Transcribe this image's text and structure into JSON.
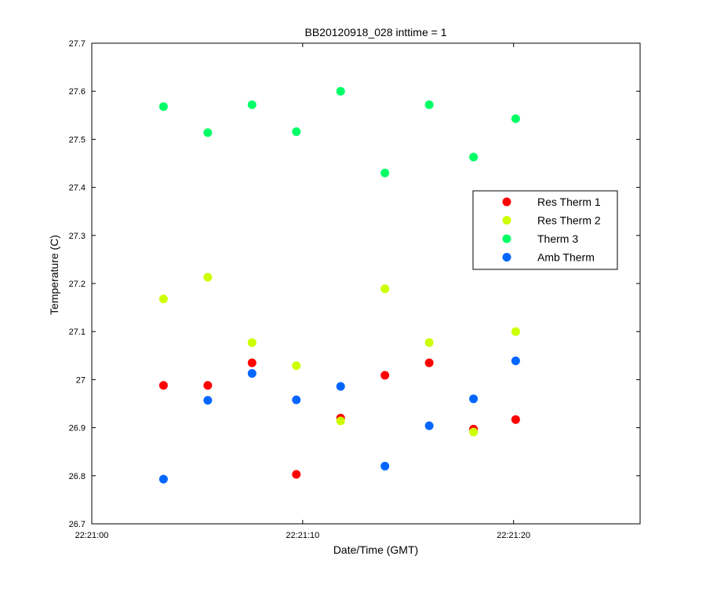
{
  "chart_data": {
    "type": "scatter",
    "title": "BB20120918_028 inttime = 1",
    "xlabel": "Date/Time (GMT)",
    "ylabel": "Temperature (C)",
    "xlim": [
      "22:21:00",
      "22:21:26"
    ],
    "ylim": [
      26.7,
      27.7
    ],
    "xticks": [
      "22:21:00",
      "22:21:10",
      "22:21:20"
    ],
    "yticks": [
      "26.7",
      "26.8",
      "26.9",
      "27",
      "27.1",
      "27.2",
      "27.3",
      "27.4",
      "27.5",
      "27.6",
      "27.7"
    ],
    "grid": false,
    "legend_position": "right",
    "x": [
      "22:21:03.4",
      "22:21:05.5",
      "22:21:07.6",
      "22:21:09.7",
      "22:21:11.8",
      "22:21:13.9",
      "22:21:16.0",
      "22:21:18.1",
      "22:21:20.1"
    ],
    "series": [
      {
        "name": "Res Therm 1",
        "color": "#ff0000",
        "values": [
          26.988,
          26.988,
          27.035,
          26.803,
          26.92,
          27.009,
          27.035,
          26.897,
          26.917
        ]
      },
      {
        "name": "Res Therm 2",
        "color": "#ccff00",
        "values": [
          27.168,
          27.213,
          27.077,
          27.029,
          26.914,
          27.189,
          27.077,
          26.891,
          27.1
        ]
      },
      {
        "name": "Therm 3",
        "color": "#00ff66",
        "values": [
          27.568,
          27.514,
          27.572,
          27.516,
          27.6,
          27.43,
          27.572,
          27.463,
          27.543
        ]
      },
      {
        "name": "Amb Therm",
        "color": "#0066ff",
        "values": [
          26.793,
          26.957,
          27.013,
          26.958,
          26.986,
          26.82,
          26.904,
          26.96,
          27.039
        ]
      }
    ]
  }
}
